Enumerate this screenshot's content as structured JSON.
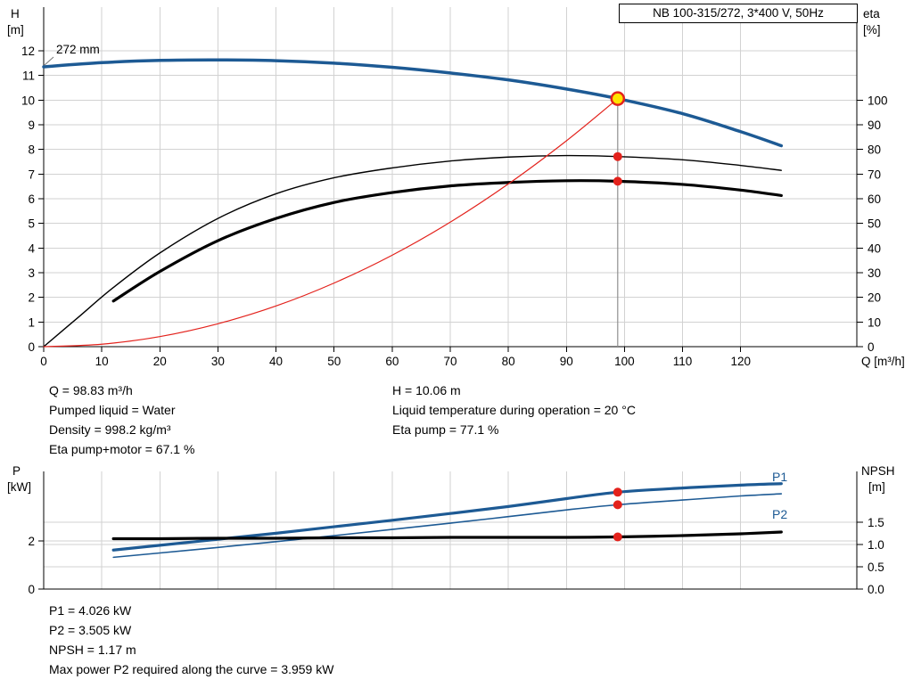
{
  "title_box": {
    "label": "NB 100-315/272, 3*400 V, 50Hz"
  },
  "colors": {
    "curve": "#1d5a94",
    "black": "#000000",
    "accent_red": "#e3221c",
    "duty_yellow": "#ffe400",
    "grid": "#d2d2d2",
    "axis": "#000000",
    "duty_line": "#8f8f8f"
  },
  "chart_data": [
    {
      "type": "line",
      "name": "head-capacity-chart",
      "x_axis": {
        "label": "Q [m³/h]",
        "min": 0,
        "max": 140,
        "ticks": [
          0,
          10,
          20,
          30,
          40,
          50,
          60,
          70,
          80,
          90,
          100,
          110,
          120
        ]
      },
      "y_left": {
        "label_1": "H",
        "label_2": "[m]",
        "min": 0,
        "max": 13.75,
        "ticks": [
          0,
          1,
          2,
          3,
          4,
          5,
          6,
          7,
          8,
          9,
          10,
          11,
          12
        ]
      },
      "y_right": {
        "label_1": "eta",
        "label_2": "[%]",
        "min": 0,
        "max": 100,
        "ticks": [
          0,
          10,
          20,
          30,
          40,
          50,
          60,
          70,
          80,
          90,
          100
        ]
      },
      "impeller_label": "272 mm",
      "series": [
        {
          "name": "head-272mm",
          "axis": "left",
          "color_key": "curve",
          "width": 3.5,
          "x": [
            0,
            10,
            20,
            30,
            40,
            50,
            60,
            70,
            80,
            90,
            98.83,
            110,
            120,
            127
          ],
          "y": [
            11.35,
            11.52,
            11.61,
            11.63,
            11.6,
            11.5,
            11.33,
            11.1,
            10.82,
            10.45,
            10.06,
            9.45,
            8.72,
            8.15
          ]
        },
        {
          "name": "eta-pump",
          "axis": "right",
          "color_key": "black",
          "width": 1.4,
          "x": [
            0,
            6,
            12,
            20,
            30,
            40,
            50,
            60,
            70,
            80,
            90,
            98.83,
            110,
            120,
            127
          ],
          "y": [
            0,
            12,
            24,
            38,
            52,
            62,
            68.5,
            72.5,
            75.3,
            76.9,
            77.5,
            77.1,
            75.8,
            73.5,
            71.5
          ]
        },
        {
          "name": "eta-pump-motor",
          "axis": "right",
          "color_key": "black",
          "width": 3.2,
          "x": [
            12,
            20,
            30,
            40,
            50,
            60,
            70,
            80,
            90,
            98.83,
            110,
            120,
            127
          ],
          "y": [
            18.5,
            30.5,
            43,
            52,
            58.5,
            62.5,
            65.2,
            66.6,
            67.3,
            67.1,
            65.8,
            63.5,
            61.3
          ]
        },
        {
          "name": "system-curve",
          "axis": "left",
          "color_key": "accent_red",
          "width": 1.2,
          "x": [
            0,
            10,
            20,
            30,
            40,
            50,
            60,
            70,
            80,
            90,
            98.83
          ],
          "y": [
            0,
            0.1,
            0.41,
            0.93,
            1.65,
            2.58,
            3.71,
            5.05,
            6.6,
            8.35,
            10.06
          ]
        }
      ],
      "duty_point": {
        "q": 98.83,
        "h": 10.06
      },
      "markers": [
        {
          "name": "eta-pump",
          "x": 98.83,
          "value": 77.1,
          "axis": "right"
        },
        {
          "name": "eta-pump-motor",
          "x": 98.83,
          "value": 67.1,
          "axis": "right"
        }
      ]
    },
    {
      "type": "line",
      "name": "power-npsh-chart",
      "x_axis": {
        "min": 0,
        "max": 140,
        "ticks": [
          0,
          10,
          20,
          30,
          40,
          50,
          60,
          70,
          80,
          90,
          100,
          110,
          120
        ]
      },
      "y_left": {
        "label_1": "P",
        "label_2": "[kW]",
        "ticks": [
          0,
          2
        ]
      },
      "y_right": {
        "label_1": "NPSH",
        "label_2": "[m]",
        "tick_labels": [
          "0.0",
          "0.5",
          "1.0",
          "1.5"
        ],
        "tick_values": [
          0,
          0.5,
          1,
          1.5
        ]
      },
      "series": [
        {
          "name": "P1",
          "label": "P1",
          "axis": "left",
          "color_key": "curve",
          "width": 3.2,
          "x": [
            12,
            20,
            30,
            40,
            50,
            60,
            70,
            80,
            90,
            98.83,
            110,
            120,
            127
          ],
          "y": [
            1.62,
            1.82,
            2.07,
            2.32,
            2.59,
            2.86,
            3.14,
            3.43,
            3.76,
            4.026,
            4.2,
            4.32,
            4.38
          ]
        },
        {
          "name": "P2",
          "label": "P2",
          "axis": "left",
          "color_key": "curve",
          "width": 1.6,
          "x": [
            12,
            20,
            30,
            40,
            50,
            60,
            70,
            80,
            90,
            98.83,
            110,
            120,
            127
          ],
          "y": [
            1.32,
            1.5,
            1.73,
            1.97,
            2.22,
            2.48,
            2.74,
            3.01,
            3.29,
            3.505,
            3.7,
            3.87,
            3.959
          ]
        },
        {
          "name": "NPSH",
          "axis": "right",
          "color_key": "black",
          "width": 3.2,
          "x": [
            12,
            20,
            30,
            40,
            50,
            60,
            70,
            80,
            90,
            98.83,
            110,
            120,
            127
          ],
          "y": [
            1.13,
            1.13,
            1.14,
            1.14,
            1.15,
            1.15,
            1.16,
            1.16,
            1.16,
            1.17,
            1.2,
            1.24,
            1.28
          ]
        }
      ],
      "markers": [
        {
          "name": "p1",
          "x": 98.83,
          "value": 4.026,
          "axis": "left"
        },
        {
          "name": "p2",
          "x": 98.83,
          "value": 3.505,
          "axis": "left"
        },
        {
          "name": "npsh",
          "x": 98.83,
          "value": 1.17,
          "axis": "right"
        }
      ]
    }
  ],
  "info_top_left": [
    "Q = 98.83 m³/h",
    "Pumped liquid = Water",
    "Density = 998.2 kg/m³",
    "Eta pump+motor = 67.1 %"
  ],
  "info_top_right": [
    "H = 10.06 m",
    "Liquid temperature during operation = 20 °C",
    "Eta pump = 77.1 %"
  ],
  "info_bottom": [
    "P1 = 4.026 kW",
    "P2 = 3.505 kW",
    "NPSH = 1.17 m",
    "Max power P2 required along the curve = 3.959 kW"
  ]
}
